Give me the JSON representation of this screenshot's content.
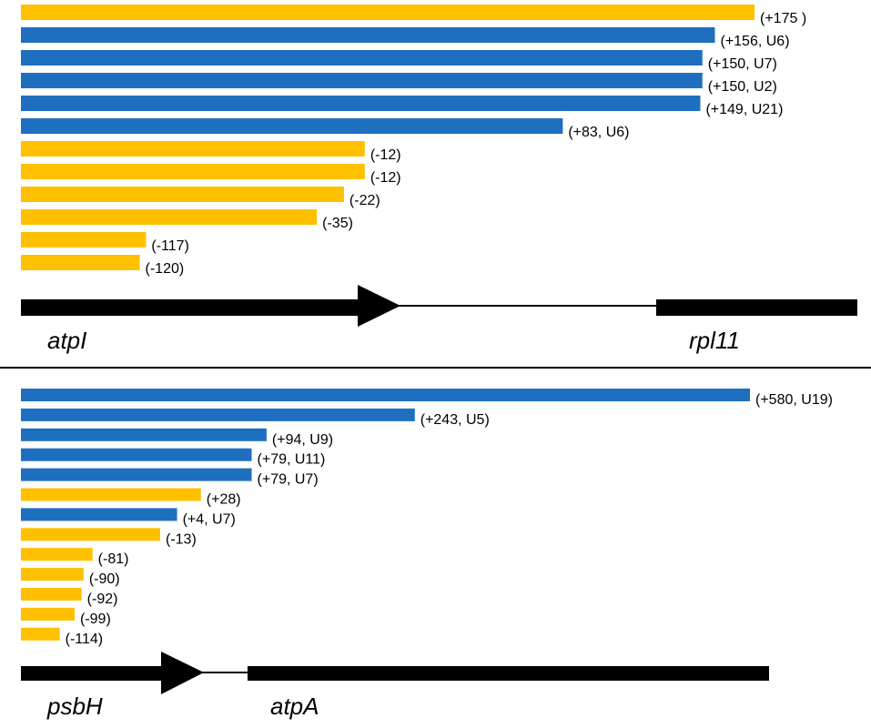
{
  "colors": {
    "yellow": "#FFC000",
    "blue": "#1F6FC0",
    "black": "#000000"
  },
  "panels": [
    {
      "genes": [
        "atpI",
        "rpl11"
      ],
      "bars": [
        {
          "label": "(+175 )",
          "value": 175,
          "color": "yellow"
        },
        {
          "label": "(+156, U6)",
          "value": 156,
          "color": "blue"
        },
        {
          "label": "(+150, U7)",
          "value": 150,
          "color": "blue"
        },
        {
          "label": "(+150, U2)",
          "value": 150,
          "color": "blue"
        },
        {
          "label": "(+149, U21)",
          "value": 149,
          "color": "blue"
        },
        {
          "label": "(+83, U6)",
          "value": 83,
          "color": "blue"
        },
        {
          "label": "(-12)",
          "value": -12,
          "color": "yellow"
        },
        {
          "label": "(-12)",
          "value": -12,
          "color": "yellow"
        },
        {
          "label": "(-22)",
          "value": -22,
          "color": "yellow"
        },
        {
          "label": "(-35)",
          "value": -35,
          "color": "yellow"
        },
        {
          "label": "(-117)",
          "value": -117,
          "color": "yellow"
        },
        {
          "label": "(-120)",
          "value": -120,
          "color": "yellow"
        }
      ]
    },
    {
      "genes": [
        "psbH",
        "atpA"
      ],
      "bars": [
        {
          "label": "(+580, U19)",
          "value": 580,
          "color": "blue"
        },
        {
          "label": "(+243, U5)",
          "value": 243,
          "color": "blue"
        },
        {
          "label": "(+94, U9)",
          "value": 94,
          "color": "blue"
        },
        {
          "label": "(+79, U11)",
          "value": 79,
          "color": "blue"
        },
        {
          "label": "(+79, U7)",
          "value": 79,
          "color": "blue"
        },
        {
          "label": "(+28)",
          "value": 28,
          "color": "yellow"
        },
        {
          "label": "(+4, U7)",
          "value": 4,
          "color": "blue"
        },
        {
          "label": "(-13)",
          "value": -13,
          "color": "yellow"
        },
        {
          "label": "(-81)",
          "value": -81,
          "color": "yellow"
        },
        {
          "label": "(-90)",
          "value": -90,
          "color": "yellow"
        },
        {
          "label": "(-92)",
          "value": -92,
          "color": "yellow"
        },
        {
          "label": "(-99)",
          "value": -99,
          "color": "yellow"
        },
        {
          "label": "(-114)",
          "value": -114,
          "color": "yellow"
        }
      ]
    }
  ]
}
